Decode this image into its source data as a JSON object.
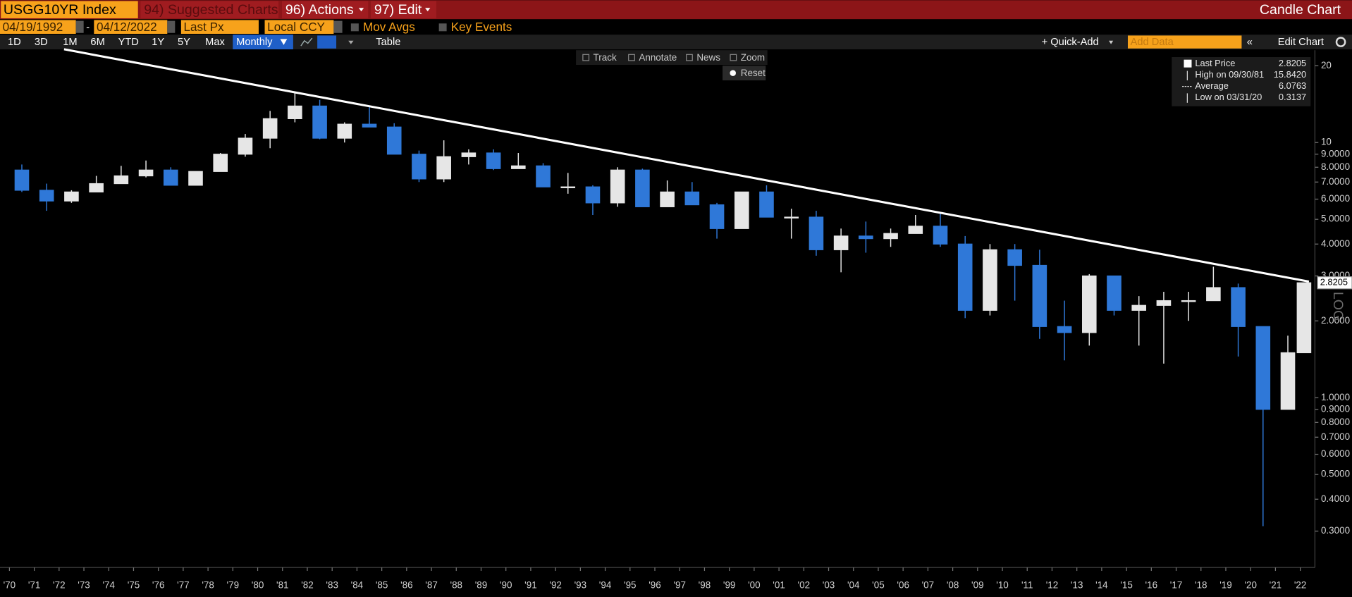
{
  "toolbar": {
    "ticker": "USGG10YR Index",
    "suggested": "94) Suggested Charts",
    "actions": "96) Actions",
    "edit": "97) Edit",
    "chart_kind": "Candle Chart"
  },
  "settings": {
    "start_date": "04/19/1992",
    "separator": "-",
    "end_date": "04/12/2022",
    "field": "Last Px",
    "currency": "Local CCY",
    "mov_avgs": "Mov Avgs",
    "key_events": "Key Events"
  },
  "periods": [
    "1D",
    "3D",
    "1M",
    "6M",
    "YTD",
    "1Y",
    "5Y",
    "Max"
  ],
  "frequency": "Monthly",
  "table": "Table",
  "quick_add": "+ Quick-Add",
  "add_data": "Add Data",
  "edit_chart": "Edit Chart",
  "chart_tools": [
    "Track",
    "Annotate",
    "News",
    "Zoom"
  ],
  "reset": "Reset",
  "chart_data": {
    "type": "candlestick",
    "log": true,
    "scale_label": "LOG",
    "up_color": "#e6e6e6",
    "down_color": "#2f78d8",
    "trendline_color": "#ffffff",
    "x": [
      1970.5,
      1971.5,
      1972.5,
      1973.5,
      1974.5,
      1975.5,
      1976.5,
      1977.5,
      1978.5,
      1979.5,
      1980.5,
      1981.5,
      1982.5,
      1983.5,
      1984.5,
      1985.5,
      1986.5,
      1987.5,
      1988.5,
      1989.5,
      1990.5,
      1991.5,
      1992.5,
      1993.5,
      1994.5,
      1995.5,
      1996.5,
      1997.5,
      1998.5,
      1999.5,
      2000.5,
      2001.5,
      2002.5,
      2003.5,
      2004.5,
      2005.5,
      2006.5,
      2007.5,
      2008.5,
      2009.5,
      2010.5,
      2011.5,
      2012.5,
      2013.5,
      2014.5,
      2015.5,
      2016.5,
      2017.5,
      2018.5,
      2019.5,
      2020.5,
      2021.5,
      2022.15
    ],
    "open": [
      7.8,
      6.5,
      5.9,
      6.4,
      6.9,
      7.4,
      7.8,
      6.8,
      7.7,
      9.0,
      10.4,
      12.4,
      13.9,
      10.4,
      11.8,
      11.5,
      9.0,
      7.2,
      8.8,
      9.1,
      7.9,
      8.1,
      6.7,
      6.7,
      5.8,
      7.8,
      5.6,
      6.4,
      5.7,
      4.6,
      6.4,
      5.1,
      5.1,
      3.8,
      4.3,
      4.2,
      4.4,
      4.7,
      4.0,
      2.2,
      3.8,
      3.3,
      1.9,
      1.8,
      3.0,
      2.2,
      2.3,
      2.4,
      2.4,
      2.7,
      1.9,
      0.9,
      1.5
    ],
    "high": [
      8.2,
      6.9,
      6.5,
      7.4,
      8.1,
      8.5,
      8.0,
      7.7,
      9.1,
      10.8,
      13.3,
      15.842,
      14.7,
      12.0,
      13.9,
      11.9,
      9.3,
      10.2,
      9.4,
      9.4,
      9.1,
      8.3,
      7.6,
      6.8,
      8.0,
      7.9,
      7.1,
      7.0,
      5.8,
      6.4,
      6.8,
      5.5,
      5.4,
      4.6,
      4.9,
      4.6,
      5.2,
      5.3,
      4.3,
      4.0,
      4.0,
      3.8,
      2.4,
      3.05,
      3.0,
      2.5,
      2.6,
      2.6,
      3.26,
      2.8,
      1.9,
      1.75,
      2.83
    ],
    "low": [
      6.4,
      5.4,
      5.8,
      6.4,
      6.9,
      7.3,
      6.8,
      6.8,
      7.7,
      8.8,
      9.5,
      12.0,
      10.3,
      10.0,
      11.5,
      9.0,
      7.0,
      7.0,
      8.2,
      7.8,
      7.9,
      6.7,
      6.3,
      5.2,
      5.6,
      5.6,
      5.6,
      5.7,
      4.2,
      4.6,
      5.1,
      4.2,
      3.6,
      3.1,
      3.7,
      3.9,
      4.4,
      3.9,
      2.05,
      2.1,
      2.4,
      1.7,
      1.4,
      1.6,
      2.1,
      1.6,
      1.36,
      2.0,
      2.4,
      1.45,
      0.3137,
      0.9,
      1.5
    ],
    "close": [
      6.5,
      5.9,
      6.4,
      6.9,
      7.4,
      7.8,
      6.8,
      7.7,
      9.0,
      10.4,
      12.4,
      13.9,
      10.4,
      11.8,
      11.5,
      9.0,
      7.2,
      8.8,
      9.1,
      7.9,
      8.1,
      6.7,
      6.7,
      5.8,
      7.8,
      5.6,
      6.4,
      5.7,
      4.6,
      6.4,
      5.1,
      5.1,
      3.8,
      4.3,
      4.2,
      4.4,
      4.7,
      4.0,
      2.2,
      3.8,
      3.3,
      1.9,
      1.8,
      3.0,
      2.2,
      2.3,
      2.4,
      2.4,
      2.7,
      1.9,
      0.9,
      1.5,
      2.8205
    ],
    "trendline": {
      "x": [
        1972.2,
        2022.35
      ],
      "y": [
        23.2,
        2.85
      ]
    },
    "xlim": [
      1969.62,
      2022.59
    ],
    "xticks": [
      {
        "value": 1970,
        "label": "'70"
      },
      {
        "value": 1971,
        "label": "'71"
      },
      {
        "value": 1972,
        "label": "'72"
      },
      {
        "value": 1973,
        "label": "'73"
      },
      {
        "value": 1974,
        "label": "'74"
      },
      {
        "value": 1975,
        "label": "'75"
      },
      {
        "value": 1976,
        "label": "'76"
      },
      {
        "value": 1977,
        "label": "'77"
      },
      {
        "value": 1978,
        "label": "'78"
      },
      {
        "value": 1979,
        "label": "'79"
      },
      {
        "value": 1980,
        "label": "'80"
      },
      {
        "value": 1981,
        "label": "'81"
      },
      {
        "value": 1982,
        "label": "'82"
      },
      {
        "value": 1983,
        "label": "'83"
      },
      {
        "value": 1984,
        "label": "'84"
      },
      {
        "value": 1985,
        "label": "'85"
      },
      {
        "value": 1986,
        "label": "'86"
      },
      {
        "value": 1987,
        "label": "'87"
      },
      {
        "value": 1988,
        "label": "'88"
      },
      {
        "value": 1989,
        "label": "'89"
      },
      {
        "value": 1990,
        "label": "'90"
      },
      {
        "value": 1991,
        "label": "'91"
      },
      {
        "value": 1992,
        "label": "'92"
      },
      {
        "value": 1993,
        "label": "'93"
      },
      {
        "value": 1994,
        "label": "'94"
      },
      {
        "value": 1995,
        "label": "'95"
      },
      {
        "value": 1996,
        "label": "'96"
      },
      {
        "value": 1997,
        "label": "'97"
      },
      {
        "value": 1998,
        "label": "'98"
      },
      {
        "value": 1999,
        "label": "'99"
      },
      {
        "value": 2000,
        "label": "'00"
      },
      {
        "value": 2001,
        "label": "'01"
      },
      {
        "value": 2002,
        "label": "'02"
      },
      {
        "value": 2003,
        "label": "'03"
      },
      {
        "value": 2004,
        "label": "'04"
      },
      {
        "value": 2005,
        "label": "'05"
      },
      {
        "value": 2006,
        "label": "'06"
      },
      {
        "value": 2007,
        "label": "'07"
      },
      {
        "value": 2008,
        "label": "'08"
      },
      {
        "value": 2009,
        "label": "'09"
      },
      {
        "value": 2010,
        "label": "'10"
      },
      {
        "value": 2011,
        "label": "'11"
      },
      {
        "value": 2012,
        "label": "'12"
      },
      {
        "value": 2013,
        "label": "'13"
      },
      {
        "value": 2014,
        "label": "'14"
      },
      {
        "value": 2015,
        "label": "'15"
      },
      {
        "value": 2016,
        "label": "'16"
      },
      {
        "value": 2017,
        "label": "'17"
      },
      {
        "value": 2018,
        "label": "'18"
      },
      {
        "value": 2019,
        "label": "'19"
      },
      {
        "value": 2020,
        "label": "'20"
      },
      {
        "value": 2021,
        "label": "'21"
      },
      {
        "value": 2022,
        "label": "'22"
      }
    ],
    "ylim": [
      0.216,
      22.3
    ],
    "yticks": [
      20,
      10,
      {
        "value": 9,
        "label": "9.0000"
      },
      {
        "value": 8,
        "label": "8.0000"
      },
      {
        "value": 7,
        "label": "7.0000"
      },
      {
        "value": 6,
        "label": "6.0000"
      },
      {
        "value": 5,
        "label": "5.0000"
      },
      {
        "value": 4,
        "label": "4.0000"
      },
      {
        "value": 3,
        "label": "3.0000"
      },
      {
        "value": 2,
        "label": "2.0000"
      },
      {
        "value": 1,
        "label": "1.0000"
      },
      {
        "value": 0.9,
        "label": "0.9000"
      },
      {
        "value": 0.8,
        "label": "0.8000"
      },
      {
        "value": 0.7,
        "label": "0.7000"
      },
      {
        "value": 0.6,
        "label": "0.6000"
      },
      {
        "value": 0.5,
        "label": "0.5000"
      },
      {
        "value": 0.4,
        "label": "0.4000"
      },
      {
        "value": 0.3,
        "label": "0.3000"
      }
    ],
    "legend": [
      {
        "name": "Last Price",
        "value": 2.8205
      },
      {
        "name": "High on 09/30/81",
        "value": 15.842,
        "value_label": "15.8420"
      },
      {
        "name": "Average",
        "value": 6.0763
      },
      {
        "name": "Low on 03/31/20",
        "value": 0.3137
      }
    ]
  }
}
